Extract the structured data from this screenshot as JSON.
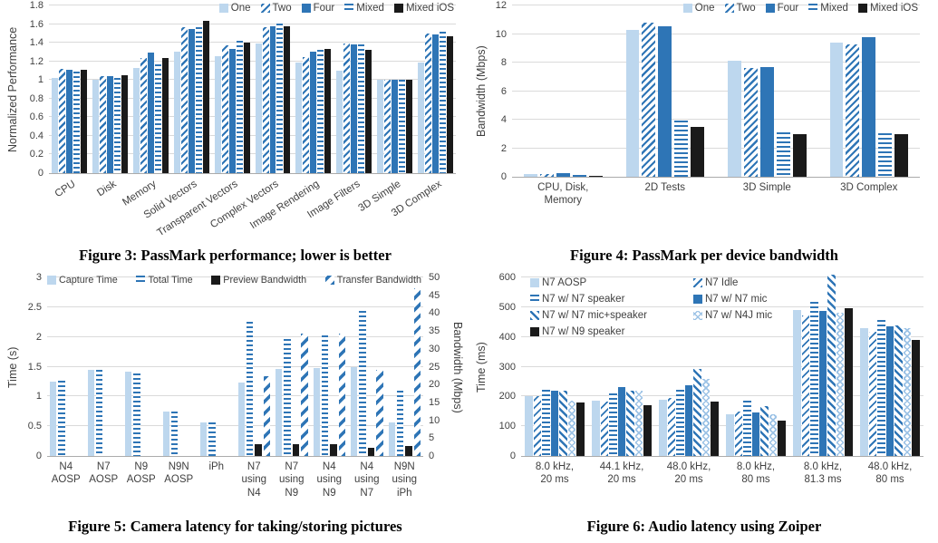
{
  "palette": {
    "light_blue": "#BDD7EE",
    "dark_blue": "#2E75B6",
    "black": "#1A1A1A",
    "lattice_blue": "#9DC3E6",
    "gridline": "#DADADA",
    "axis_text": "#404040"
  },
  "chart_data": [
    {
      "id": "figure-3",
      "type": "bar",
      "caption": "Figure 3: PassMark performance; lower is better",
      "ylabel": "Normalized Performance",
      "ylim": [
        0,
        1.8
      ],
      "yticks": [
        "0",
        "0.2",
        "0.4",
        "0.6",
        "0.8",
        "1",
        "1.2",
        "1.4",
        "1.6",
        "1.8"
      ],
      "grid": true,
      "legend_position": "top-right",
      "categories": [
        "CPU",
        "Disk",
        "Memory",
        "Solid Vectors",
        "Transparent Vectors",
        "Complex Vectors",
        "Image Rendering",
        "Image Filters",
        "3D Simple",
        "3D Complex"
      ],
      "series": [
        {
          "name": "One",
          "pattern": "light",
          "values": [
            1.02,
            1.0,
            1.13,
            1.3,
            1.26,
            1.39,
            1.19,
            1.1,
            1.0,
            1.19
          ]
        },
        {
          "name": "Two",
          "pattern": "diag",
          "values": [
            1.12,
            1.04,
            1.24,
            1.57,
            1.37,
            1.57,
            1.25,
            1.39,
            1.0,
            1.5
          ]
        },
        {
          "name": "Four",
          "pattern": "dark",
          "values": [
            1.11,
            1.04,
            1.29,
            1.55,
            1.33,
            1.58,
            1.3,
            1.38,
            1.0,
            1.49
          ]
        },
        {
          "name": "Mixed",
          "pattern": "hlines",
          "values": [
            1.09,
            1.02,
            1.17,
            1.57,
            1.42,
            1.61,
            1.32,
            1.38,
            1.0,
            1.52
          ]
        },
        {
          "name": "Mixed iOS",
          "pattern": "black",
          "values": [
            1.11,
            1.05,
            1.24,
            1.63,
            1.4,
            1.58,
            1.33,
            1.32,
            1.0,
            1.47
          ]
        }
      ]
    },
    {
      "id": "figure-4",
      "type": "bar",
      "caption": "Figure 4: PassMark per device bandwidth",
      "ylabel": "Bandwidth (Mbps)",
      "ylim": [
        0,
        12
      ],
      "yticks": [
        "0",
        "2",
        "4",
        "6",
        "8",
        "10",
        "12"
      ],
      "grid": true,
      "legend_position": "top-right",
      "categories": [
        [
          "CPU, Disk,",
          "Memory"
        ],
        [
          "2D Tests"
        ],
        [
          "3D Simple"
        ],
        [
          "3D Complex"
        ]
      ],
      "series": [
        {
          "name": "One",
          "pattern": "light",
          "values": [
            0.2,
            10.3,
            8.1,
            9.4
          ]
        },
        {
          "name": "Two",
          "pattern": "diag",
          "values": [
            0.2,
            10.8,
            7.65,
            9.3
          ]
        },
        {
          "name": "Four",
          "pattern": "dark",
          "values": [
            0.25,
            10.55,
            7.7,
            9.8
          ]
        },
        {
          "name": "Mixed",
          "pattern": "hlines",
          "values": [
            0.1,
            3.95,
            3.1,
            3.05
          ]
        },
        {
          "name": "Mixed iOS",
          "pattern": "black",
          "values": [
            0.08,
            3.5,
            3.0,
            3.0
          ]
        }
      ]
    },
    {
      "id": "figure-5",
      "type": "bar",
      "caption": "Figure 5: Camera latency for taking/storing pictures",
      "ylabel": "Time (s)",
      "ylim": [
        0,
        3
      ],
      "yticks": [
        "0",
        "0.5",
        "1",
        "1.5",
        "2",
        "2.5",
        "3"
      ],
      "y2label": "Bandwidth (Mbps)",
      "y2lim": [
        0,
        50
      ],
      "y2ticks": [
        "0",
        "5",
        "10",
        "15",
        "20",
        "25",
        "30",
        "35",
        "40",
        "45",
        "50"
      ],
      "grid": true,
      "legend_position": "top-row",
      "categories": [
        [
          "N4",
          "AOSP"
        ],
        [
          "N7",
          "AOSP"
        ],
        [
          "N9",
          "AOSP"
        ],
        [
          "N9N",
          "AOSP"
        ],
        [
          "iPh"
        ],
        [
          "N7",
          "using",
          "N4"
        ],
        [
          "N7",
          "using",
          "N9"
        ],
        [
          "N4",
          "using",
          "N9"
        ],
        [
          "N4",
          "using",
          "N7"
        ],
        [
          "N9N",
          "using",
          "iPh"
        ]
      ],
      "series": [
        {
          "name": "Capture Time",
          "pattern": "light",
          "axis": "left",
          "values": [
            1.25,
            1.45,
            1.41,
            0.74,
            0.56,
            1.24,
            1.46,
            1.47,
            1.49,
            0.57
          ]
        },
        {
          "name": "Total Time",
          "pattern": "hlines",
          "axis": "left",
          "values": [
            1.26,
            1.44,
            1.39,
            0.74,
            0.56,
            2.26,
            1.97,
            2.02,
            2.43,
            1.09
          ]
        },
        {
          "name": "Preview Bandwidth",
          "pattern": "black",
          "axis": "right",
          "values": [
            0,
            0,
            0,
            0,
            0,
            3.2,
            3.2,
            3.3,
            2.4,
            2.7
          ]
        },
        {
          "name": "Transfer Bandwidth",
          "pattern": "diag-wide",
          "axis": "right",
          "values": [
            0,
            0,
            0,
            0,
            0,
            22.4,
            34.3,
            34.2,
            24.2,
            47.0
          ]
        }
      ]
    },
    {
      "id": "figure-6",
      "type": "bar",
      "caption": "Figure 6: Audio latency using Zoiper",
      "ylabel": "Time (ms)",
      "ylim": [
        0,
        600
      ],
      "yticks": [
        "0",
        "100",
        "200",
        "300",
        "400",
        "500",
        "600"
      ],
      "grid": true,
      "legend_position": "top-left-2col",
      "categories": [
        [
          "8.0 kHz,",
          "20 ms"
        ],
        [
          "44.1 kHz,",
          "20 ms"
        ],
        [
          "48.0 kHz,",
          "20 ms"
        ],
        [
          "8.0 kHz,",
          "80 ms"
        ],
        [
          "8.0 kHz,",
          "81.3 ms"
        ],
        [
          "48.0 kHz,",
          "80 ms"
        ]
      ],
      "series": [
        {
          "name": "N7 AOSP",
          "pattern": "light",
          "values": [
            200,
            185,
            190,
            140,
            490,
            428
          ]
        },
        {
          "name": "N7 Idle",
          "pattern": "diag-thin",
          "values": [
            200,
            182,
            195,
            148,
            472,
            417
          ]
        },
        {
          "name": "N7 w/ N7 speaker",
          "pattern": "hlines",
          "values": [
            221,
            211,
            221,
            185,
            517,
            457
          ]
        },
        {
          "name": "N7 w/ N7 mic",
          "pattern": "dark",
          "values": [
            220,
            232,
            238,
            146,
            487,
            437
          ]
        },
        {
          "name": "N7 w/ N7 mic+speaker",
          "pattern": "diag-back",
          "values": [
            219,
            220,
            292,
            168,
            610,
            440
          ]
        },
        {
          "name": "N7 w/ N4J mic",
          "pattern": "cross",
          "values": [
            187,
            218,
            258,
            140,
            481,
            431
          ]
        },
        {
          "name": "N7 w/ N9 speaker",
          "pattern": "black",
          "values": [
            181,
            170,
            183,
            118,
            497,
            390
          ]
        }
      ]
    }
  ]
}
